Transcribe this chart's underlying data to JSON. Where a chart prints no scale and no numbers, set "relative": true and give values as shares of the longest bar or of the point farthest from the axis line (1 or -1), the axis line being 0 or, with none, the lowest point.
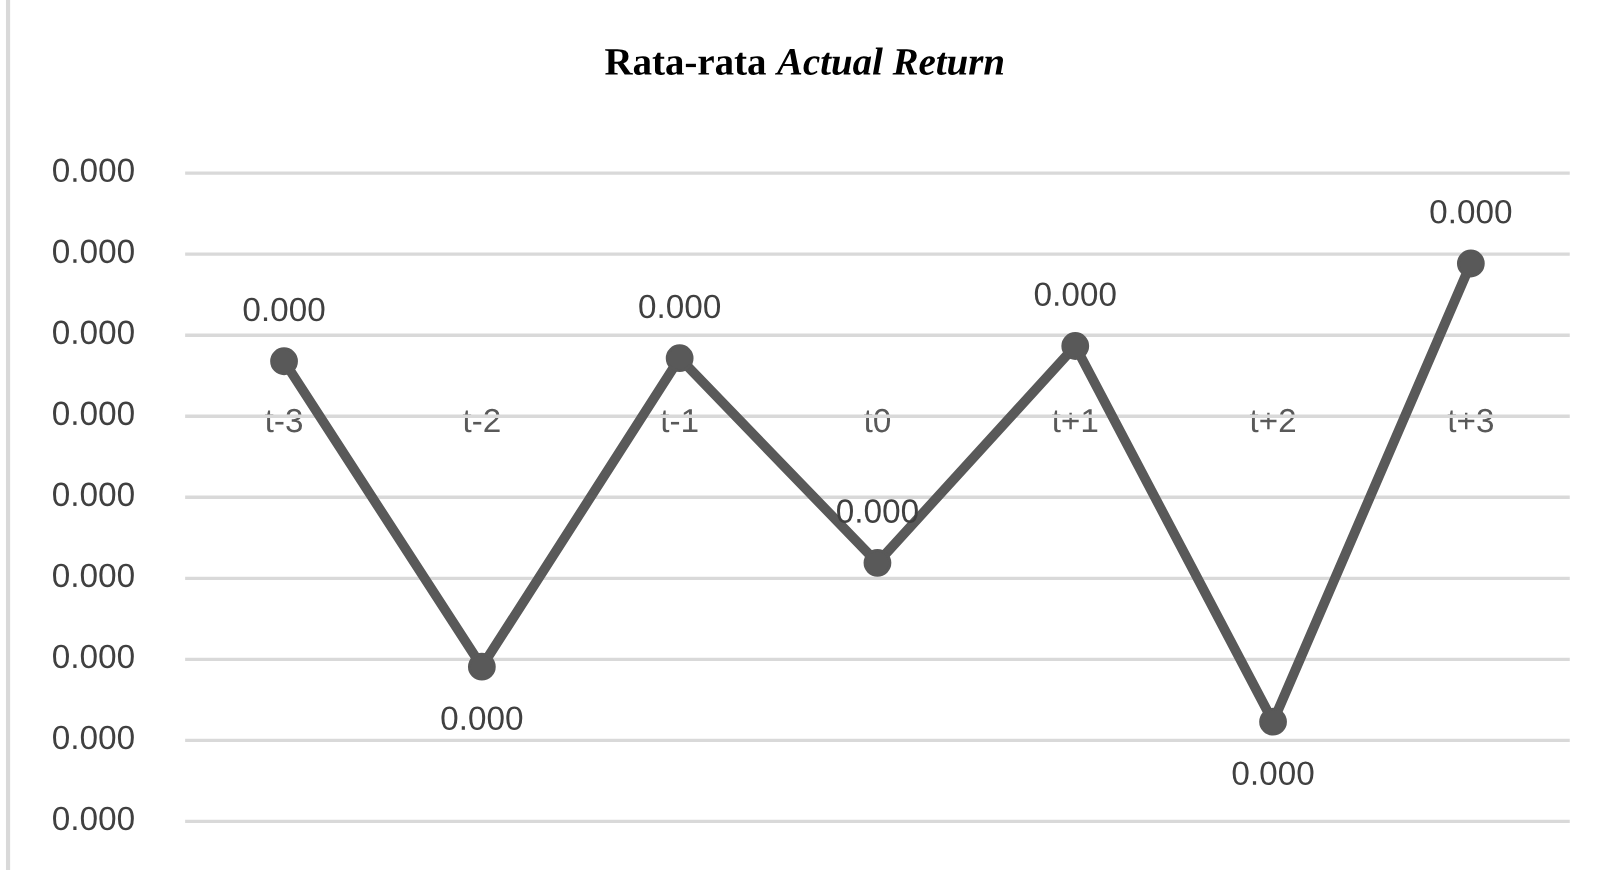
{
  "chart_data": {
    "type": "line",
    "title": "Rata-rata Actual Return",
    "relative": true,
    "categories": [
      "t-3",
      "t-2",
      "t-1",
      "t0",
      "t+1",
      "t+2",
      "t+3"
    ],
    "series": [
      {
        "color": "#595959",
        "values": [
          0.18,
          -0.82,
          0.19,
          -0.48,
          0.23,
          -1,
          0.5
        ]
      }
    ],
    "annotations": [
      "0.000",
      "0.000",
      "0.000",
      "0.000",
      "0.000",
      "0.000",
      "0.000",
      "0.000",
      "0.000",
      {
        "text": "0.000",
        "x": "t-3",
        "y": 0.18
      },
      {
        "text": "0.000",
        "x": "t-2",
        "y": -0.82
      },
      {
        "text": "0.000",
        "x": "t-1",
        "y": 0.19
      },
      {
        "text": "0.000",
        "x": "t0",
        "y": -0.48
      },
      {
        "text": "0.000",
        "x": "t+1",
        "y": 0.23
      },
      {
        "text": "0.000",
        "x": "t+2",
        "y": -1
      },
      {
        "text": "0.000",
        "x": "t+3",
        "y": 0.5
      }
    ],
    "grid": "y",
    "marker": "circle",
    "line_style": "solid"
  }
}
